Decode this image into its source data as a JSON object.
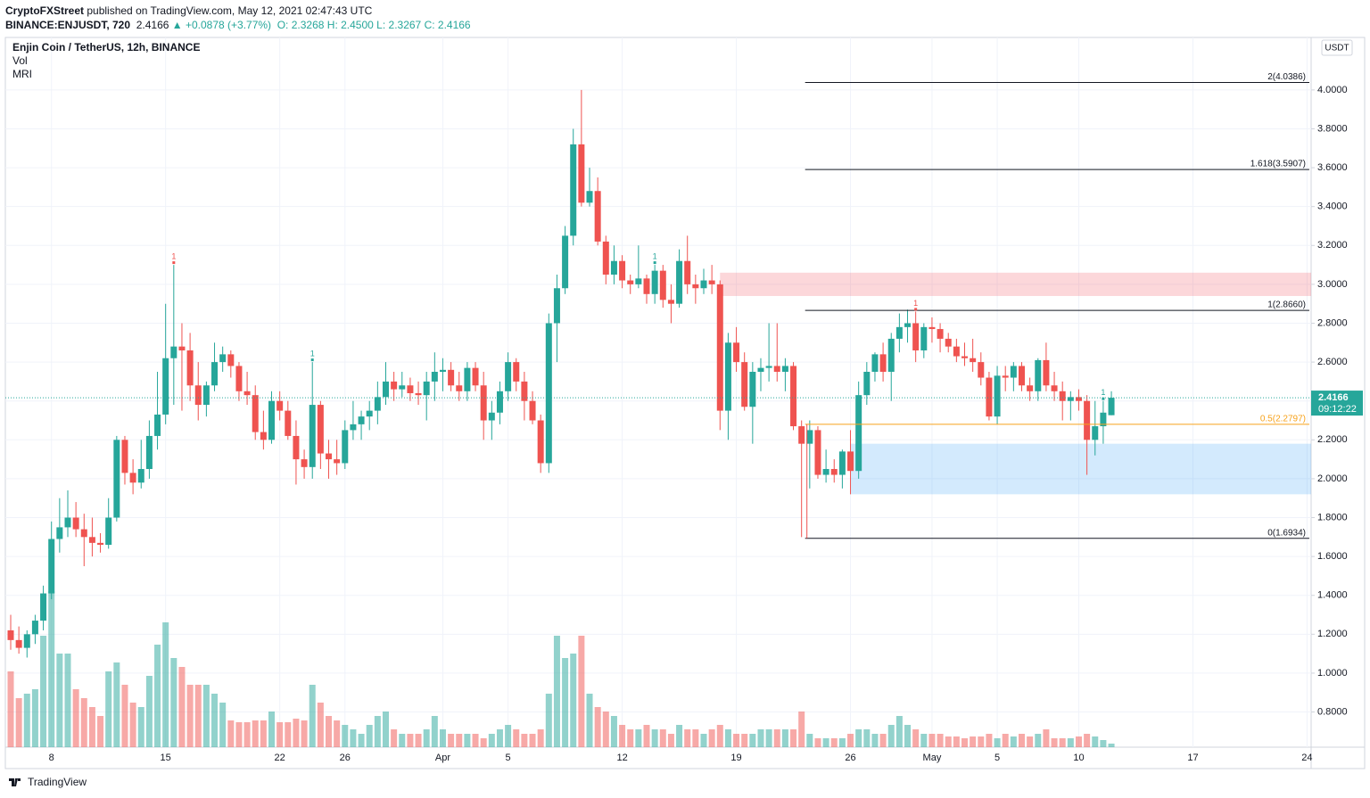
{
  "header": {
    "publisher": "CryptoFXStreet",
    "published": "published on TradingView.com, May 12, 2021 02:47:43 UTC",
    "symbol": "BINANCE:ENJUSDT, 720",
    "last": "2.4166",
    "change": "▲ +0.0878 (+3.77%)",
    "open": "O: 2.3268",
    "high": "H: 2.4500",
    "low": "L: 2.3267",
    "close": "C: 2.4166"
  },
  "footer": {
    "brand": "TradingView"
  },
  "chart_data": {
    "type": "candlestick",
    "title": "Enjin Coin / TetherUS, 12h, BINANCE",
    "indicators": [
      "Vol",
      "MRI"
    ],
    "axis_unit": "USDT",
    "countdown": "09:12:22",
    "up_color": "#26a69a",
    "down_color": "#ef5350",
    "grid": true,
    "categories": [
      null,
      null,
      null,
      null,
      null,
      "8",
      null,
      null,
      null,
      null,
      null,
      null,
      null,
      null,
      null,
      null,
      null,
      null,
      null,
      "15",
      null,
      null,
      null,
      null,
      null,
      null,
      null,
      null,
      null,
      null,
      null,
      null,
      null,
      "22",
      null,
      null,
      null,
      null,
      null,
      null,
      null,
      "26",
      null,
      null,
      null,
      null,
      null,
      null,
      null,
      null,
      null,
      null,
      null,
      "Apr",
      null,
      null,
      null,
      null,
      null,
      null,
      null,
      "5",
      null,
      null,
      null,
      null,
      null,
      null,
      null,
      null,
      null,
      null,
      null,
      null,
      null,
      "12",
      null,
      null,
      null,
      null,
      null,
      null,
      null,
      null,
      null,
      null,
      null,
      null,
      null,
      "19",
      null,
      null,
      null,
      null,
      null,
      null,
      null,
      null,
      null,
      null,
      null,
      null,
      null,
      "26",
      null,
      null,
      null,
      null,
      null,
      null,
      null,
      null,
      null,
      "May",
      null,
      null,
      null,
      null,
      null,
      null,
      null,
      "5",
      null,
      null,
      null,
      null,
      null,
      null,
      null,
      null,
      null,
      "10",
      null,
      null,
      null,
      null,
      null,
      null,
      null,
      null,
      null,
      null,
      null,
      null,
      null,
      "17",
      null,
      null,
      null,
      null,
      null,
      null,
      null,
      null,
      null,
      null,
      null,
      null,
      null,
      "24"
    ],
    "open": [
      1.22,
      1.17,
      1.13,
      1.2,
      1.27,
      1.41,
      1.69,
      1.75,
      1.8,
      1.74,
      1.7,
      1.67,
      1.66,
      1.8,
      2.2,
      2.03,
      1.98,
      2.05,
      2.22,
      2.33,
      2.62,
      2.68,
      2.66,
      2.48,
      2.38,
      2.48,
      2.6,
      2.64,
      2.58,
      2.45,
      2.43,
      2.24,
      2.2,
      2.4,
      2.35,
      2.22,
      2.1,
      2.06,
      2.38,
      2.13,
      2.1,
      2.08,
      2.25,
      2.28,
      2.32,
      2.35,
      2.42,
      2.5,
      2.46,
      2.48,
      2.44,
      2.43,
      2.5,
      2.55,
      2.56,
      2.48,
      2.45,
      2.57,
      2.48,
      2.3,
      2.34,
      2.45,
      2.6,
      2.5,
      2.4,
      2.3,
      2.08,
      2.8,
      2.98,
      3.25,
      3.72,
      3.42,
      3.48,
      3.22,
      3.05,
      3.12,
      3.02,
      3.0,
      3.03,
      2.95,
      3.07,
      2.92,
      2.9,
      3.12,
      3.0,
      2.98,
      3.02,
      3.0,
      2.35,
      2.7,
      2.6,
      2.37,
      2.55,
      2.57,
      2.58,
      2.55,
      2.58,
      2.27,
      2.18,
      2.25,
      2.02,
      2.05,
      2.02,
      2.14,
      2.04,
      2.43,
      2.55,
      2.64,
      2.55,
      2.72,
      2.78,
      2.8,
      2.66,
      2.78,
      2.77,
      2.72,
      2.68,
      2.63,
      2.62,
      2.6,
      2.52,
      2.32,
      2.53,
      2.52,
      2.58,
      2.48,
      2.45,
      2.61,
      2.48,
      2.45,
      2.4,
      2.42,
      2.4,
      2.2,
      2.27,
      2.3268,
      null,
      null,
      null,
      null,
      null,
      null,
      null,
      null,
      null,
      null,
      null,
      null,
      null,
      null,
      null,
      null,
      null,
      null,
      null,
      null,
      null,
      null,
      null,
      null
    ],
    "high": [
      1.3,
      1.24,
      1.22,
      1.3,
      1.45,
      1.78,
      1.9,
      1.94,
      1.88,
      1.82,
      1.8,
      1.72,
      1.9,
      2.22,
      2.22,
      2.1,
      2.2,
      2.3,
      2.55,
      2.9,
      3.1,
      2.8,
      2.75,
      2.6,
      2.5,
      2.7,
      2.68,
      2.66,
      2.6,
      2.55,
      2.48,
      2.35,
      2.45,
      2.45,
      2.4,
      2.3,
      2.15,
      2.6,
      2.4,
      2.2,
      2.2,
      2.3,
      2.4,
      2.35,
      2.4,
      2.5,
      2.6,
      2.55,
      2.55,
      2.52,
      2.5,
      2.55,
      2.65,
      2.62,
      2.6,
      2.55,
      2.6,
      2.6,
      2.55,
      2.4,
      2.5,
      2.65,
      2.62,
      2.55,
      2.45,
      2.33,
      2.85,
      3.05,
      3.3,
      3.8,
      4.0,
      3.6,
      3.55,
      3.25,
      3.2,
      3.15,
      3.05,
      3.2,
      3.05,
      3.1,
      3.1,
      3.0,
      3.18,
      3.25,
      3.05,
      3.08,
      3.1,
      3.02,
      2.75,
      2.78,
      2.65,
      2.6,
      2.62,
      2.8,
      2.8,
      2.62,
      2.6,
      2.3,
      2.3,
      2.27,
      2.15,
      2.1,
      2.15,
      2.25,
      2.5,
      2.6,
      2.65,
      2.7,
      2.75,
      2.85,
      2.87,
      2.86,
      2.8,
      2.83,
      2.8,
      2.75,
      2.72,
      2.7,
      2.72,
      2.65,
      2.55,
      2.58,
      2.58,
      2.6,
      2.6,
      2.52,
      2.62,
      2.7,
      2.55,
      2.5,
      2.45,
      2.46,
      2.43,
      2.4,
      2.4,
      2.45,
      null,
      null,
      null,
      null,
      null,
      null,
      null,
      null,
      null,
      null,
      null,
      null,
      null,
      null,
      null,
      null,
      null,
      null,
      null,
      null,
      null,
      null,
      null,
      null
    ],
    "low": [
      1.12,
      1.1,
      1.08,
      1.15,
      1.22,
      1.38,
      1.62,
      1.7,
      1.7,
      1.55,
      1.6,
      1.62,
      1.64,
      1.78,
      1.97,
      1.92,
      1.95,
      2.0,
      2.15,
      2.28,
      2.38,
      2.35,
      2.4,
      2.3,
      2.32,
      2.45,
      2.55,
      2.52,
      2.4,
      2.38,
      2.2,
      2.15,
      2.18,
      2.3,
      2.2,
      1.97,
      2.0,
      2.0,
      2.05,
      2.0,
      2.02,
      2.05,
      2.2,
      2.2,
      2.25,
      2.28,
      2.38,
      2.4,
      2.42,
      2.4,
      2.38,
      2.3,
      2.4,
      2.45,
      2.45,
      2.4,
      2.4,
      2.45,
      2.2,
      2.2,
      2.28,
      2.4,
      2.45,
      2.3,
      2.28,
      2.03,
      2.03,
      2.6,
      2.95,
      3.2,
      3.4,
      3.4,
      3.2,
      3.0,
      3.0,
      2.98,
      2.95,
      2.98,
      2.9,
      2.9,
      2.88,
      2.8,
      2.88,
      2.95,
      2.9,
      2.95,
      2.95,
      2.25,
      2.2,
      2.55,
      2.35,
      2.18,
      2.45,
      2.5,
      2.5,
      2.45,
      2.25,
      1.7,
      1.95,
      2.0,
      1.98,
      1.98,
      1.95,
      1.92,
      2.0,
      2.38,
      2.5,
      2.5,
      2.4,
      2.65,
      2.7,
      2.6,
      2.62,
      2.7,
      2.65,
      2.65,
      2.6,
      2.58,
      2.55,
      2.48,
      2.3,
      2.28,
      2.45,
      2.45,
      2.45,
      2.4,
      2.4,
      2.45,
      2.4,
      2.3,
      2.3,
      2.35,
      2.02,
      2.12,
      2.18,
      2.3267,
      null,
      null,
      null,
      null,
      null,
      null,
      null,
      null,
      null,
      null,
      null,
      null,
      null,
      null,
      null,
      null,
      null,
      null,
      null,
      null,
      null,
      null,
      null,
      null
    ],
    "close": [
      1.17,
      1.13,
      1.2,
      1.27,
      1.41,
      1.69,
      1.75,
      1.8,
      1.74,
      1.7,
      1.67,
      1.66,
      1.8,
      2.2,
      2.03,
      1.98,
      2.05,
      2.22,
      2.33,
      2.62,
      2.68,
      2.66,
      2.48,
      2.38,
      2.48,
      2.6,
      2.64,
      2.58,
      2.45,
      2.43,
      2.24,
      2.2,
      2.4,
      2.35,
      2.22,
      2.1,
      2.06,
      2.38,
      2.13,
      2.1,
      2.08,
      2.25,
      2.28,
      2.32,
      2.35,
      2.42,
      2.5,
      2.46,
      2.48,
      2.44,
      2.43,
      2.5,
      2.55,
      2.56,
      2.48,
      2.45,
      2.57,
      2.48,
      2.3,
      2.34,
      2.45,
      2.6,
      2.5,
      2.4,
      2.3,
      2.08,
      2.8,
      2.98,
      3.25,
      3.72,
      3.42,
      3.48,
      3.22,
      3.05,
      3.12,
      3.02,
      3.0,
      3.03,
      2.95,
      3.07,
      2.92,
      2.9,
      3.12,
      3.0,
      2.98,
      3.02,
      3.0,
      2.35,
      2.7,
      2.6,
      2.37,
      2.55,
      2.57,
      2.58,
      2.55,
      2.58,
      2.27,
      2.18,
      2.25,
      2.02,
      2.05,
      2.02,
      2.14,
      2.04,
      2.43,
      2.55,
      2.64,
      2.55,
      2.72,
      2.78,
      2.8,
      2.66,
      2.78,
      2.77,
      2.72,
      2.68,
      2.63,
      2.62,
      2.6,
      2.52,
      2.32,
      2.53,
      2.52,
      2.58,
      2.48,
      2.45,
      2.61,
      2.48,
      2.45,
      2.4,
      2.42,
      2.4,
      2.2,
      2.27,
      2.34,
      2.4166,
      null,
      null,
      null,
      null,
      null,
      null,
      null,
      null,
      null,
      null,
      null,
      null,
      null,
      null,
      null,
      null,
      null,
      null,
      null,
      null,
      null,
      null,
      null,
      null
    ],
    "volume": [
      85,
      55,
      60,
      65,
      125,
      175,
      105,
      105,
      65,
      55,
      45,
      35,
      85,
      95,
      70,
      50,
      45,
      80,
      115,
      140,
      100,
      90,
      70,
      70,
      70,
      60,
      50,
      30,
      28,
      28,
      30,
      30,
      40,
      28,
      28,
      32,
      30,
      70,
      50,
      35,
      30,
      25,
      20,
      15,
      25,
      35,
      40,
      20,
      15,
      15,
      15,
      20,
      35,
      20,
      15,
      15,
      15,
      15,
      10,
      15,
      20,
      25,
      20,
      15,
      15,
      20,
      60,
      125,
      100,
      105,
      125,
      60,
      45,
      40,
      35,
      25,
      20,
      20,
      25,
      20,
      20,
      15,
      25,
      20,
      20,
      15,
      20,
      25,
      20,
      15,
      15,
      15,
      20,
      20,
      20,
      20,
      20,
      40,
      15,
      10,
      10,
      10,
      10,
      15,
      20,
      20,
      15,
      15,
      25,
      35,
      25,
      20,
      15,
      15,
      15,
      12,
      12,
      10,
      12,
      12,
      15,
      10,
      15,
      12,
      15,
      12,
      15,
      20,
      10,
      10,
      10,
      12,
      15,
      12,
      8,
      4,
      null,
      null,
      null,
      null,
      null,
      null,
      null,
      null,
      null,
      null,
      null,
      null,
      null,
      null,
      null,
      null,
      null,
      null,
      null,
      null,
      null,
      null,
      null,
      null
    ],
    "ylim": [
      0.619,
      4.27
    ],
    "yticks": [
      {
        "value": 0.8,
        "label": "0.8000"
      },
      {
        "value": 1.0,
        "label": "1.0000"
      },
      {
        "value": 1.2,
        "label": "1.2000"
      },
      {
        "value": 1.4,
        "label": "1.4000"
      },
      {
        "value": 1.6,
        "label": "1.6000"
      },
      {
        "value": 1.8,
        "label": "1.8000"
      },
      {
        "value": 2.0,
        "label": "2.0000"
      },
      {
        "value": 2.2,
        "label": "2.2000"
      },
      {
        "value": 2.4,
        "label": "2.4000"
      },
      {
        "value": 2.6,
        "label": "2.6000"
      },
      {
        "value": 2.8,
        "label": "2.8000"
      },
      {
        "value": 3.0,
        "label": "3.0000"
      },
      {
        "value": 3.2,
        "label": "3.2000"
      },
      {
        "value": 3.4,
        "label": "3.4000"
      },
      {
        "value": 3.6,
        "label": "3.6000"
      },
      {
        "value": 3.8,
        "label": "3.8000"
      },
      {
        "value": 4.0,
        "label": "4.0000"
      }
    ],
    "fib_levels": [
      {
        "label": "2(4.0386)",
        "value": 4.0386,
        "color": "#131722"
      },
      {
        "label": "1.618(3.5907)",
        "value": 3.5907,
        "color": "#131722"
      },
      {
        "label": "1(2.8660)",
        "value": 2.866,
        "color": "#131722"
      },
      {
        "label": "0.5(2.2797)",
        "value": 2.2797,
        "color": "#f7a21b"
      },
      {
        "label": "0(1.6934)",
        "value": 1.6934,
        "color": "#131722"
      }
    ],
    "fib_start_category": 97,
    "zones": [
      {
        "from": 2.94,
        "to": 3.06,
        "start_category": 87,
        "color": "rgba(242,54,69,0.2)"
      },
      {
        "from": 1.92,
        "to": 2.18,
        "start_category": 103,
        "color": "rgba(33,150,243,0.2)"
      }
    ],
    "td_marks": [
      {
        "category": 20,
        "label": "1",
        "color": "#ef5350"
      },
      {
        "category": 37,
        "label": "1",
        "color": "#26a69a"
      },
      {
        "category": 79,
        "label": "1",
        "color": "#26a69a"
      },
      {
        "category": 111,
        "label": "1",
        "color": "#ef5350"
      },
      {
        "category": 134,
        "label": "1",
        "color": "#26a69a"
      }
    ]
  }
}
